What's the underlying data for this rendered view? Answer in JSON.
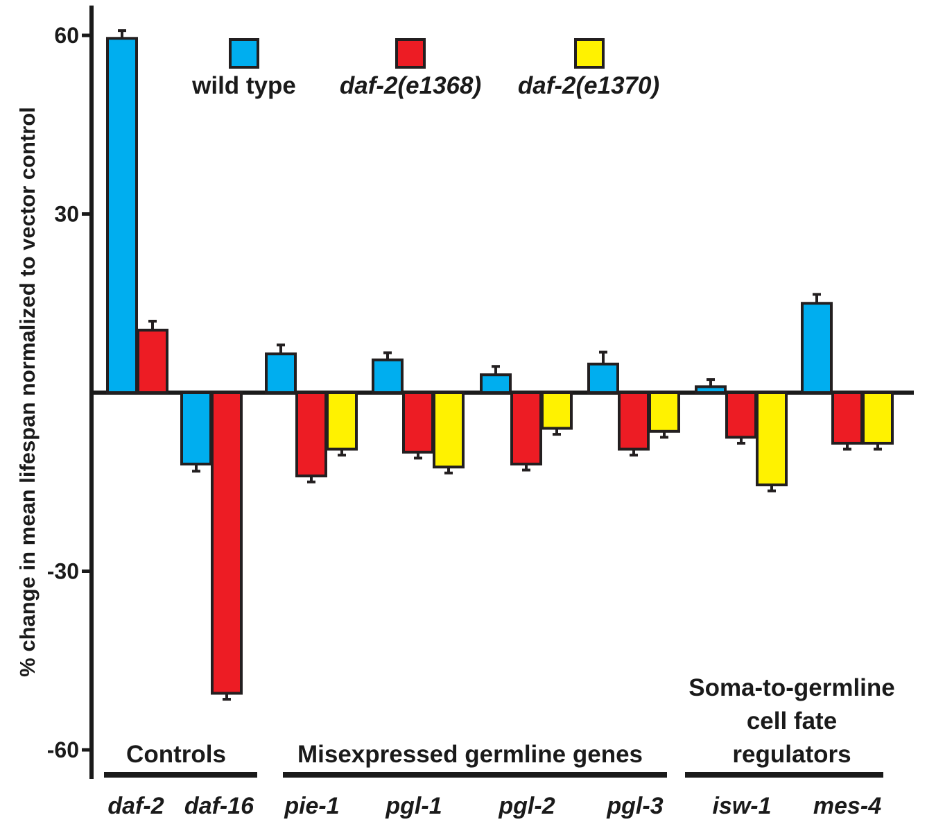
{
  "chart_data": {
    "type": "bar",
    "ylabel": "% change in mean lifespan normalized to vector control",
    "xlabel": "",
    "title": "",
    "ylim": [
      -60,
      65
    ],
    "yticks": [
      60,
      30,
      -30,
      -60
    ],
    "ytick_labels": [
      "60",
      "30",
      "-30",
      "-60"
    ],
    "grid": false,
    "legend_position": "top",
    "categories": [
      "daf-2",
      "daf-16",
      "pie-1",
      "pgl-1",
      "pgl-2",
      "pgl-3",
      "isw-1",
      "mes-4"
    ],
    "series": [
      {
        "name": "wild type",
        "color": "#00aeef",
        "legend_italic": false,
        "values": [
          59.5,
          -12,
          6.5,
          5.5,
          3,
          4.8,
          1,
          15
        ],
        "errors": [
          1.3,
          1.2,
          1.5,
          1.2,
          1.4,
          2.0,
          1.2,
          1.5
        ]
      },
      {
        "name": "daf-2(e1368)",
        "color": "#ed1c24",
        "legend_italic": true,
        "values": [
          10.5,
          -50.5,
          -14,
          -10,
          -12,
          -9.5,
          -7.5,
          -8.5
        ],
        "errors": [
          1.5,
          1.0,
          1.0,
          1.0,
          1.0,
          1.0,
          1.0,
          1.0
        ]
      },
      {
        "name": "daf-2(e1370)",
        "color": "#fff200",
        "legend_italic": true,
        "values": [
          null,
          null,
          -9.5,
          -12.5,
          -6,
          -6.5,
          -15.5,
          -8.5
        ],
        "errors": [
          null,
          null,
          1.0,
          1.0,
          1.0,
          1.0,
          1.0,
          1.0
        ]
      }
    ],
    "groups": [
      {
        "label_lines": [
          "Controls"
        ],
        "categories": [
          "daf-2",
          "daf-16"
        ]
      },
      {
        "label_lines": [
          "Misexpressed germline genes"
        ],
        "categories": [
          "pie-1",
          "pgl-1",
          "pgl-2",
          "pgl-3"
        ]
      },
      {
        "label_lines": [
          "Soma-to-germline",
          "cell fate",
          "regulators"
        ],
        "categories": [
          "isw-1",
          "mes-4"
        ]
      }
    ]
  }
}
